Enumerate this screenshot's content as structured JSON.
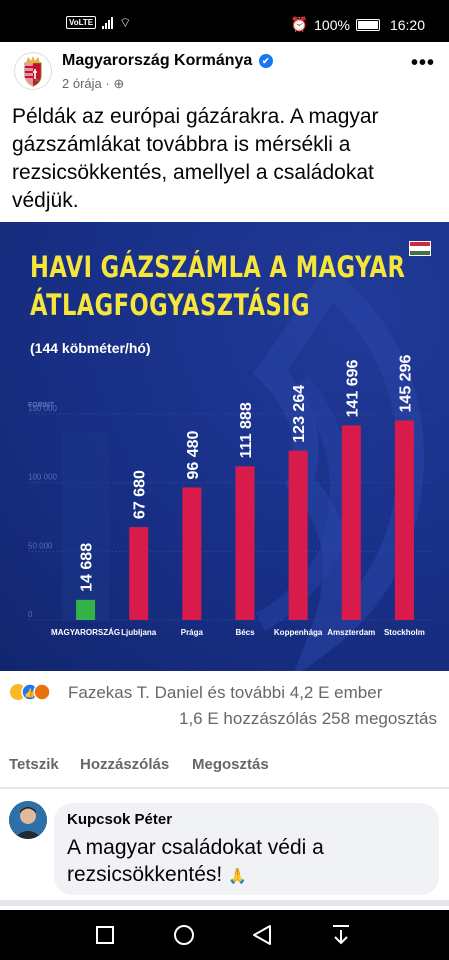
{
  "statusbar": {
    "network": "VoLTE",
    "battery": "100%",
    "time": "16:20"
  },
  "post": {
    "author": "Magyarország Kormánya",
    "time": "2 órája",
    "text": "Példák az európai gázárakra. A magyar gázszámlákat továbbra is mérsékli a rezsicsökkentés, amellyel a családokat védjük."
  },
  "infographic": {
    "title_line1": "HAVI GÁZSZÁMLA A MAGYAR",
    "title_line2": "ÁTLAGFOGYASZTÁSIG",
    "subtitle": "(144 köbméter/hó)",
    "flag_colors": [
      "#cd2a3e",
      "#ffffff",
      "#436f4d"
    ]
  },
  "chart_data": {
    "type": "bar",
    "unit_label": "FORINT",
    "categories": [
      "MAGYARORSZÁG",
      "Ljubljana",
      "Prága",
      "Bécs",
      "Koppenhága",
      "Amszterdam",
      "Stockholm"
    ],
    "values": [
      14688,
      67680,
      96480,
      111888,
      123264,
      141696,
      145296
    ],
    "value_labels": [
      "14 688",
      "67 680",
      "96 480",
      "111 888",
      "123 264",
      "141 696",
      "145 296"
    ],
    "ytick_labels": [
      "150 000",
      "100 000",
      "50 000",
      "0"
    ],
    "ytick_values": [
      150000,
      100000,
      50000,
      0
    ],
    "ylim": [
      0,
      150000
    ],
    "colors": {
      "highlight": "#33b24a",
      "bar": "#d81b4a",
      "bar_shadow": "#1e3688"
    }
  },
  "reactions": {
    "summary": "Fazekas T. Daniel és további 4,2 E ember",
    "comments": "1,6 E hozzászólás",
    "shares": "258 megosztás"
  },
  "actions": {
    "like": "Tetszik",
    "comment": "Hozzászólás",
    "share": "Megosztás"
  },
  "comment": {
    "author": "Kupcsok Péter",
    "text": "A magyar családokat védi a rezsicsökkentés!"
  }
}
